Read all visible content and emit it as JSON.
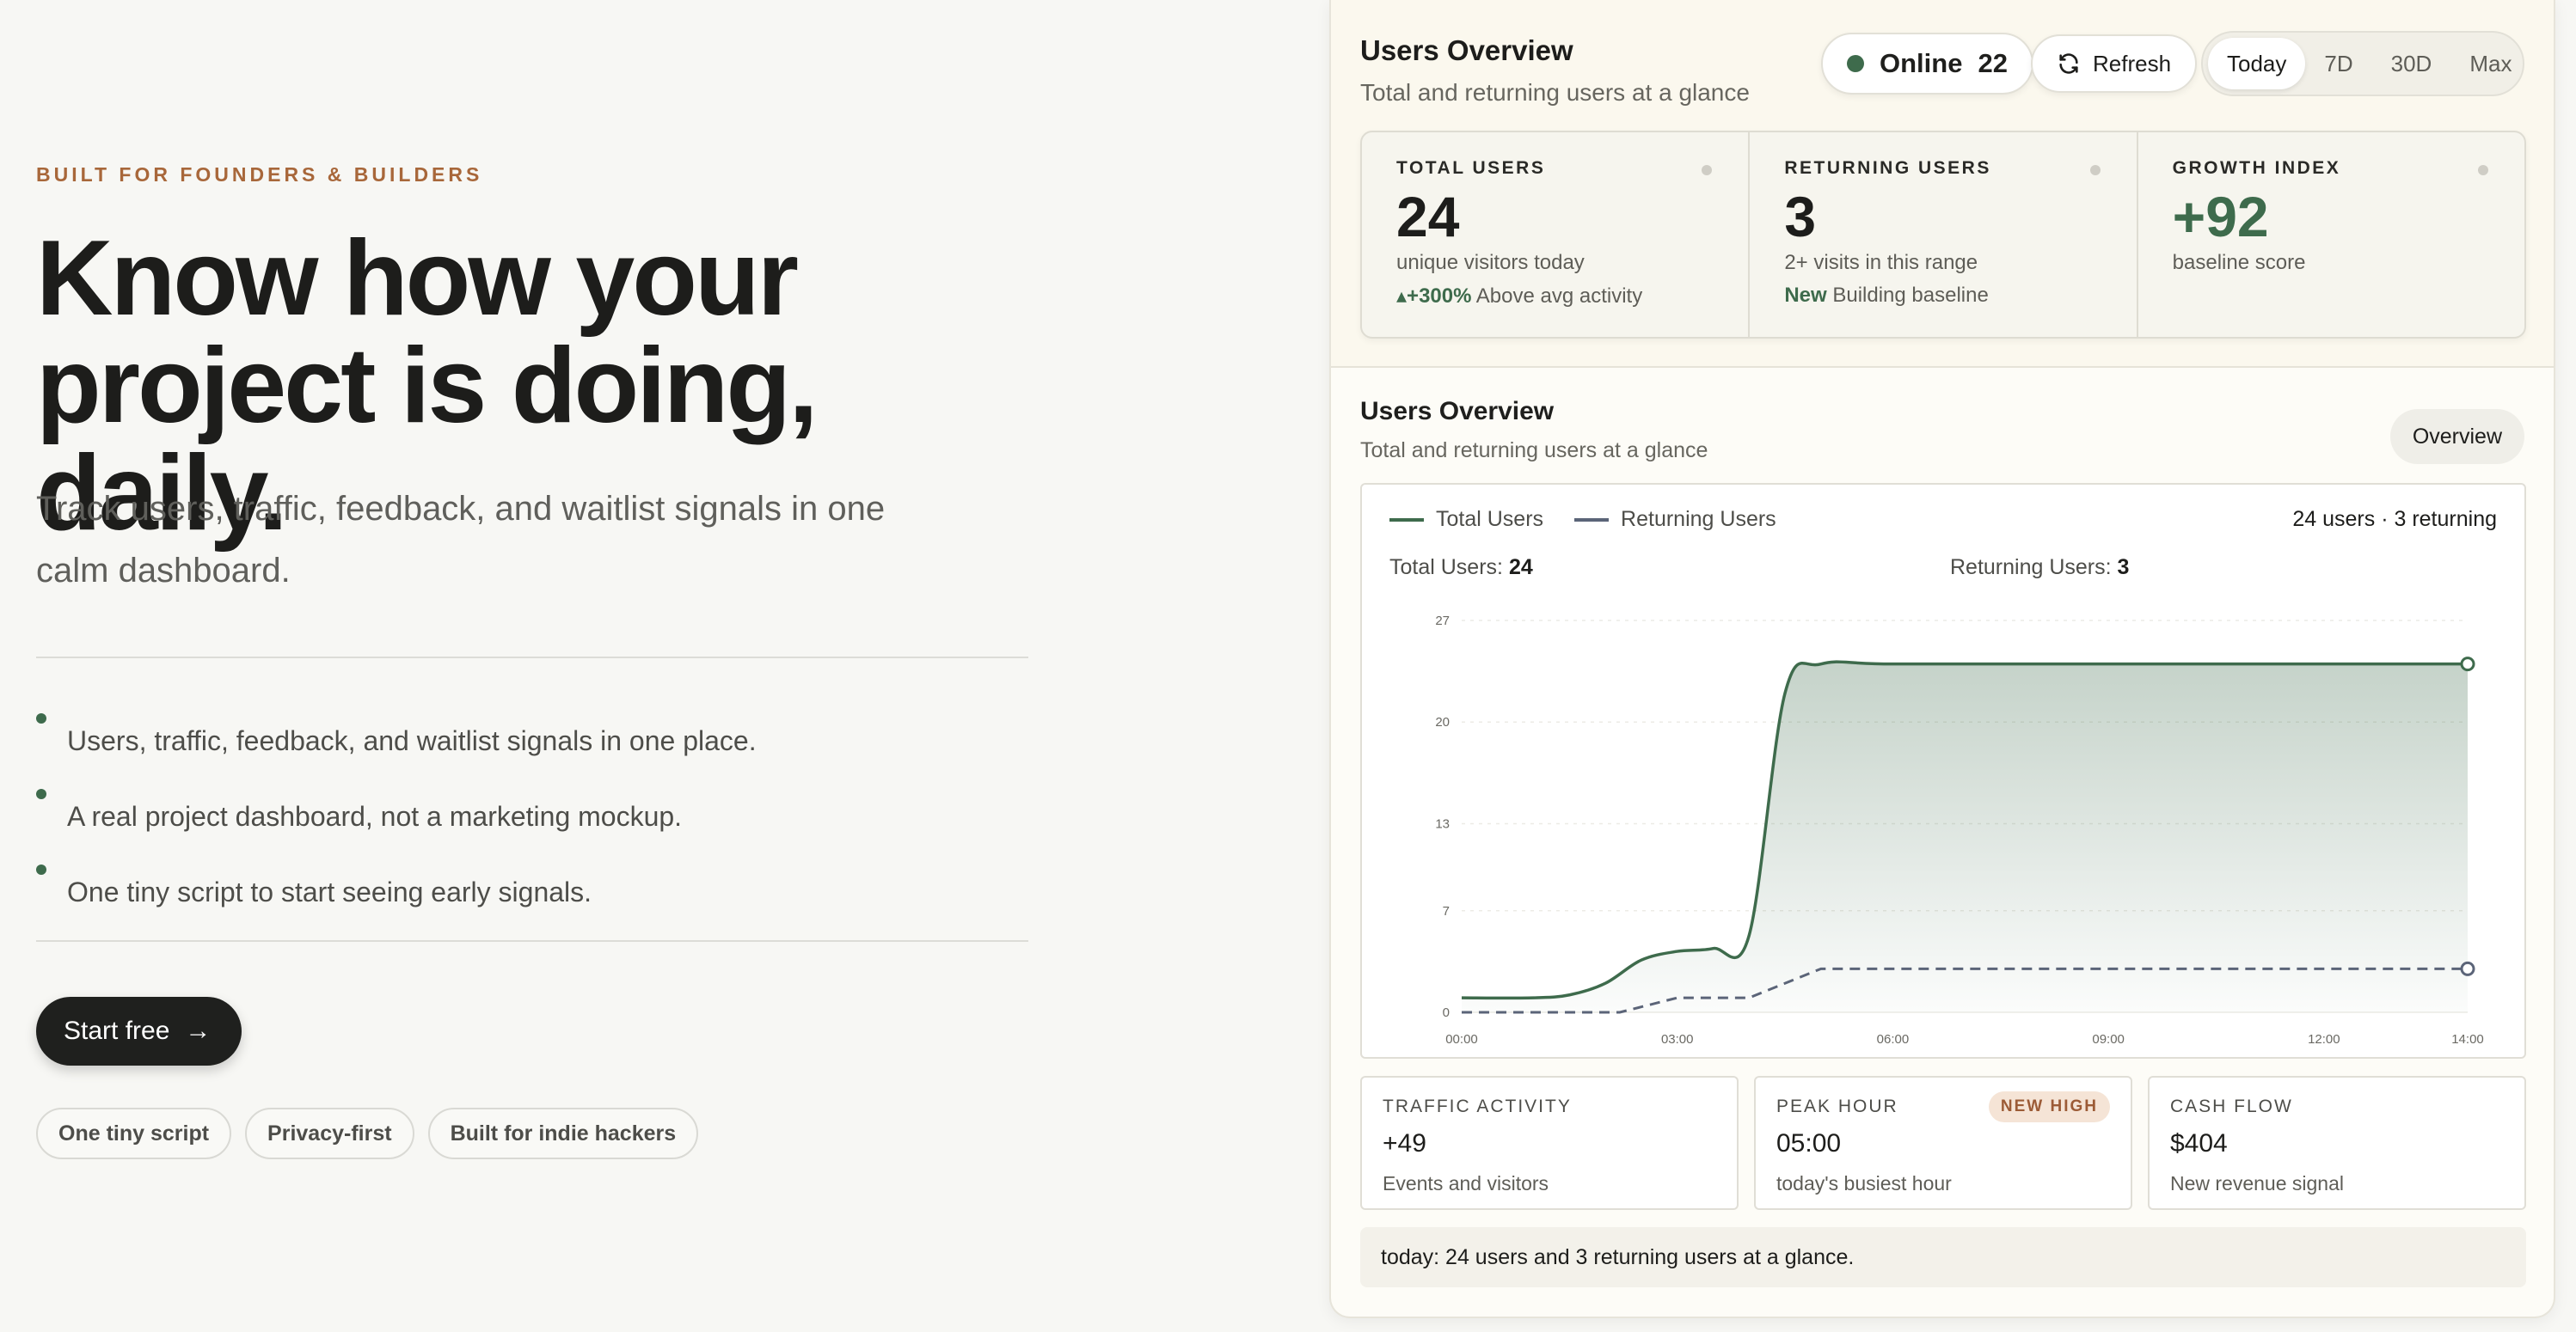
{
  "hero": {
    "eyebrow": "BUILT FOR FOUNDERS & BUILDERS",
    "headline_line1": "Know how your",
    "headline_line2": "project is doing, daily.",
    "subhead": "Track users, traffic, feedback, and waitlist signals in one calm dashboard.",
    "bullets": [
      "Users, traffic, feedback, and waitlist signals in one place.",
      "A real project dashboard, not a marketing mockup.",
      "One tiny script to start seeing early signals."
    ],
    "cta_label": "Start free",
    "chips": [
      "One tiny script",
      "Privacy-first",
      "Built for indie hackers"
    ]
  },
  "panel": {
    "title": "Users Overview",
    "subtitle": "Total and returning users at a glance",
    "online_label": "Online",
    "online_count": "22",
    "refresh_label": "Refresh",
    "ranges": [
      "Today",
      "7D",
      "30D",
      "Max"
    ],
    "active_range": "Today",
    "kpis": [
      {
        "label": "TOTAL USERS",
        "value": "24",
        "desc": "unique visitors today",
        "note_strong": "▴+300%",
        "note_rest": " Above avg activity"
      },
      {
        "label": "RETURNING USERS",
        "value": "3",
        "desc": "2+ visits in this range",
        "note_strong": "New",
        "note_rest": " Building baseline"
      },
      {
        "label": "GROWTH INDEX",
        "value": "+92",
        "desc": "baseline score",
        "note_strong": "",
        "note_rest": ""
      }
    ],
    "section_title": "Users Overview",
    "section_subtitle": "Total and returning users at a glance",
    "overview_button": "Overview",
    "legend": {
      "total": "Total Users",
      "returning": "Returning Users"
    },
    "summary": "24 users · 3 returning",
    "readout_total_label": "Total Users:",
    "readout_total_value": "24",
    "readout_returning_label": "Returning Users:",
    "readout_returning_value": "3",
    "cards": [
      {
        "label": "TRAFFIC ACTIVITY",
        "value": "+49",
        "desc": "Events and visitors",
        "badge": ""
      },
      {
        "label": "PEAK HOUR",
        "value": "05:00",
        "desc": "today's busiest hour",
        "badge": "NEW HIGH"
      },
      {
        "label": "CASH FLOW",
        "value": "$404",
        "desc": "New revenue signal",
        "badge": ""
      }
    ],
    "footer_note": "today: 24 users and 3 returning users at a glance."
  },
  "colors": {
    "accent_green": "#3e6b4c",
    "returning_slate": "#5b6478",
    "eyebrow_brown": "#a8673a"
  },
  "chart_data": {
    "type": "area",
    "x_ticks": [
      "00:00",
      "03:00",
      "06:00",
      "09:00",
      "12:00",
      "14:00"
    ],
    "y_ticks": [
      0,
      7,
      13,
      20,
      27
    ],
    "ylim": [
      0,
      27
    ],
    "xlim_hours": [
      0,
      14
    ],
    "grid": true,
    "series": [
      {
        "name": "Total Users",
        "style": "solid-area",
        "points": [
          [
            0,
            1
          ],
          [
            1,
            1
          ],
          [
            1.5,
            1.2
          ],
          [
            2,
            2
          ],
          [
            2.5,
            3.6
          ],
          [
            3,
            4.2
          ],
          [
            3.5,
            4.4
          ],
          [
            4,
            5.3
          ],
          [
            4.5,
            22
          ],
          [
            5,
            24
          ],
          [
            6,
            24
          ],
          [
            9,
            24
          ],
          [
            12,
            24
          ],
          [
            14,
            24
          ]
        ]
      },
      {
        "name": "Returning Users",
        "style": "dashed",
        "points": [
          [
            0,
            0
          ],
          [
            2.2,
            0
          ],
          [
            3,
            1
          ],
          [
            4,
            1
          ],
          [
            5,
            3
          ],
          [
            6,
            3
          ],
          [
            9,
            3
          ],
          [
            12,
            3
          ],
          [
            14,
            3
          ]
        ]
      }
    ]
  }
}
